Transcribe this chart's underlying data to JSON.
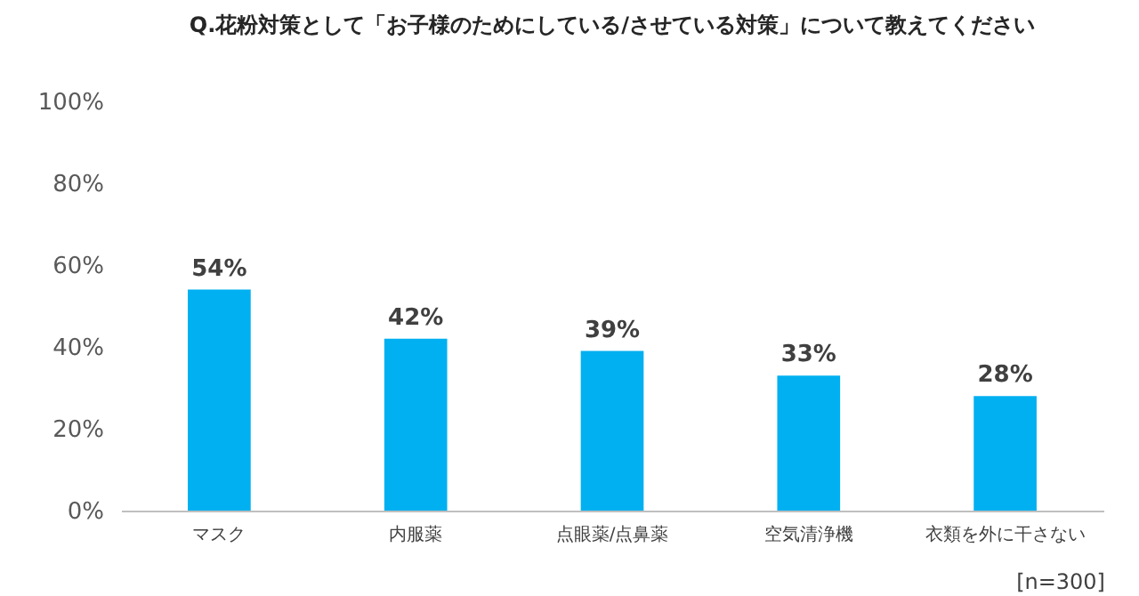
{
  "chart_data": {
    "type": "bar",
    "title": "Q.花粉対策として「お子様のためにしている/させている対策」について教えてください",
    "categories": [
      "マスク",
      "内服薬",
      "点眼薬/点鼻薬",
      "空気清浄機",
      "衣類を外に干さない"
    ],
    "values": [
      54,
      42,
      39,
      33,
      28
    ],
    "color": "#00b0f0",
    "value_labels": [
      "54%",
      "42%",
      "39%",
      "33%",
      "28%"
    ],
    "ylim": [
      0,
      100
    ],
    "yticks": [
      {
        "value": 0,
        "label": "0%"
      },
      {
        "value": 20,
        "label": "20%"
      },
      {
        "value": 40,
        "label": "40%"
      },
      {
        "value": 60,
        "label": "60%"
      },
      {
        "value": 80,
        "label": "80%"
      },
      {
        "value": 100,
        "label": "100%"
      }
    ],
    "grid": false,
    "annotations": [
      "[n=300]"
    ]
  }
}
